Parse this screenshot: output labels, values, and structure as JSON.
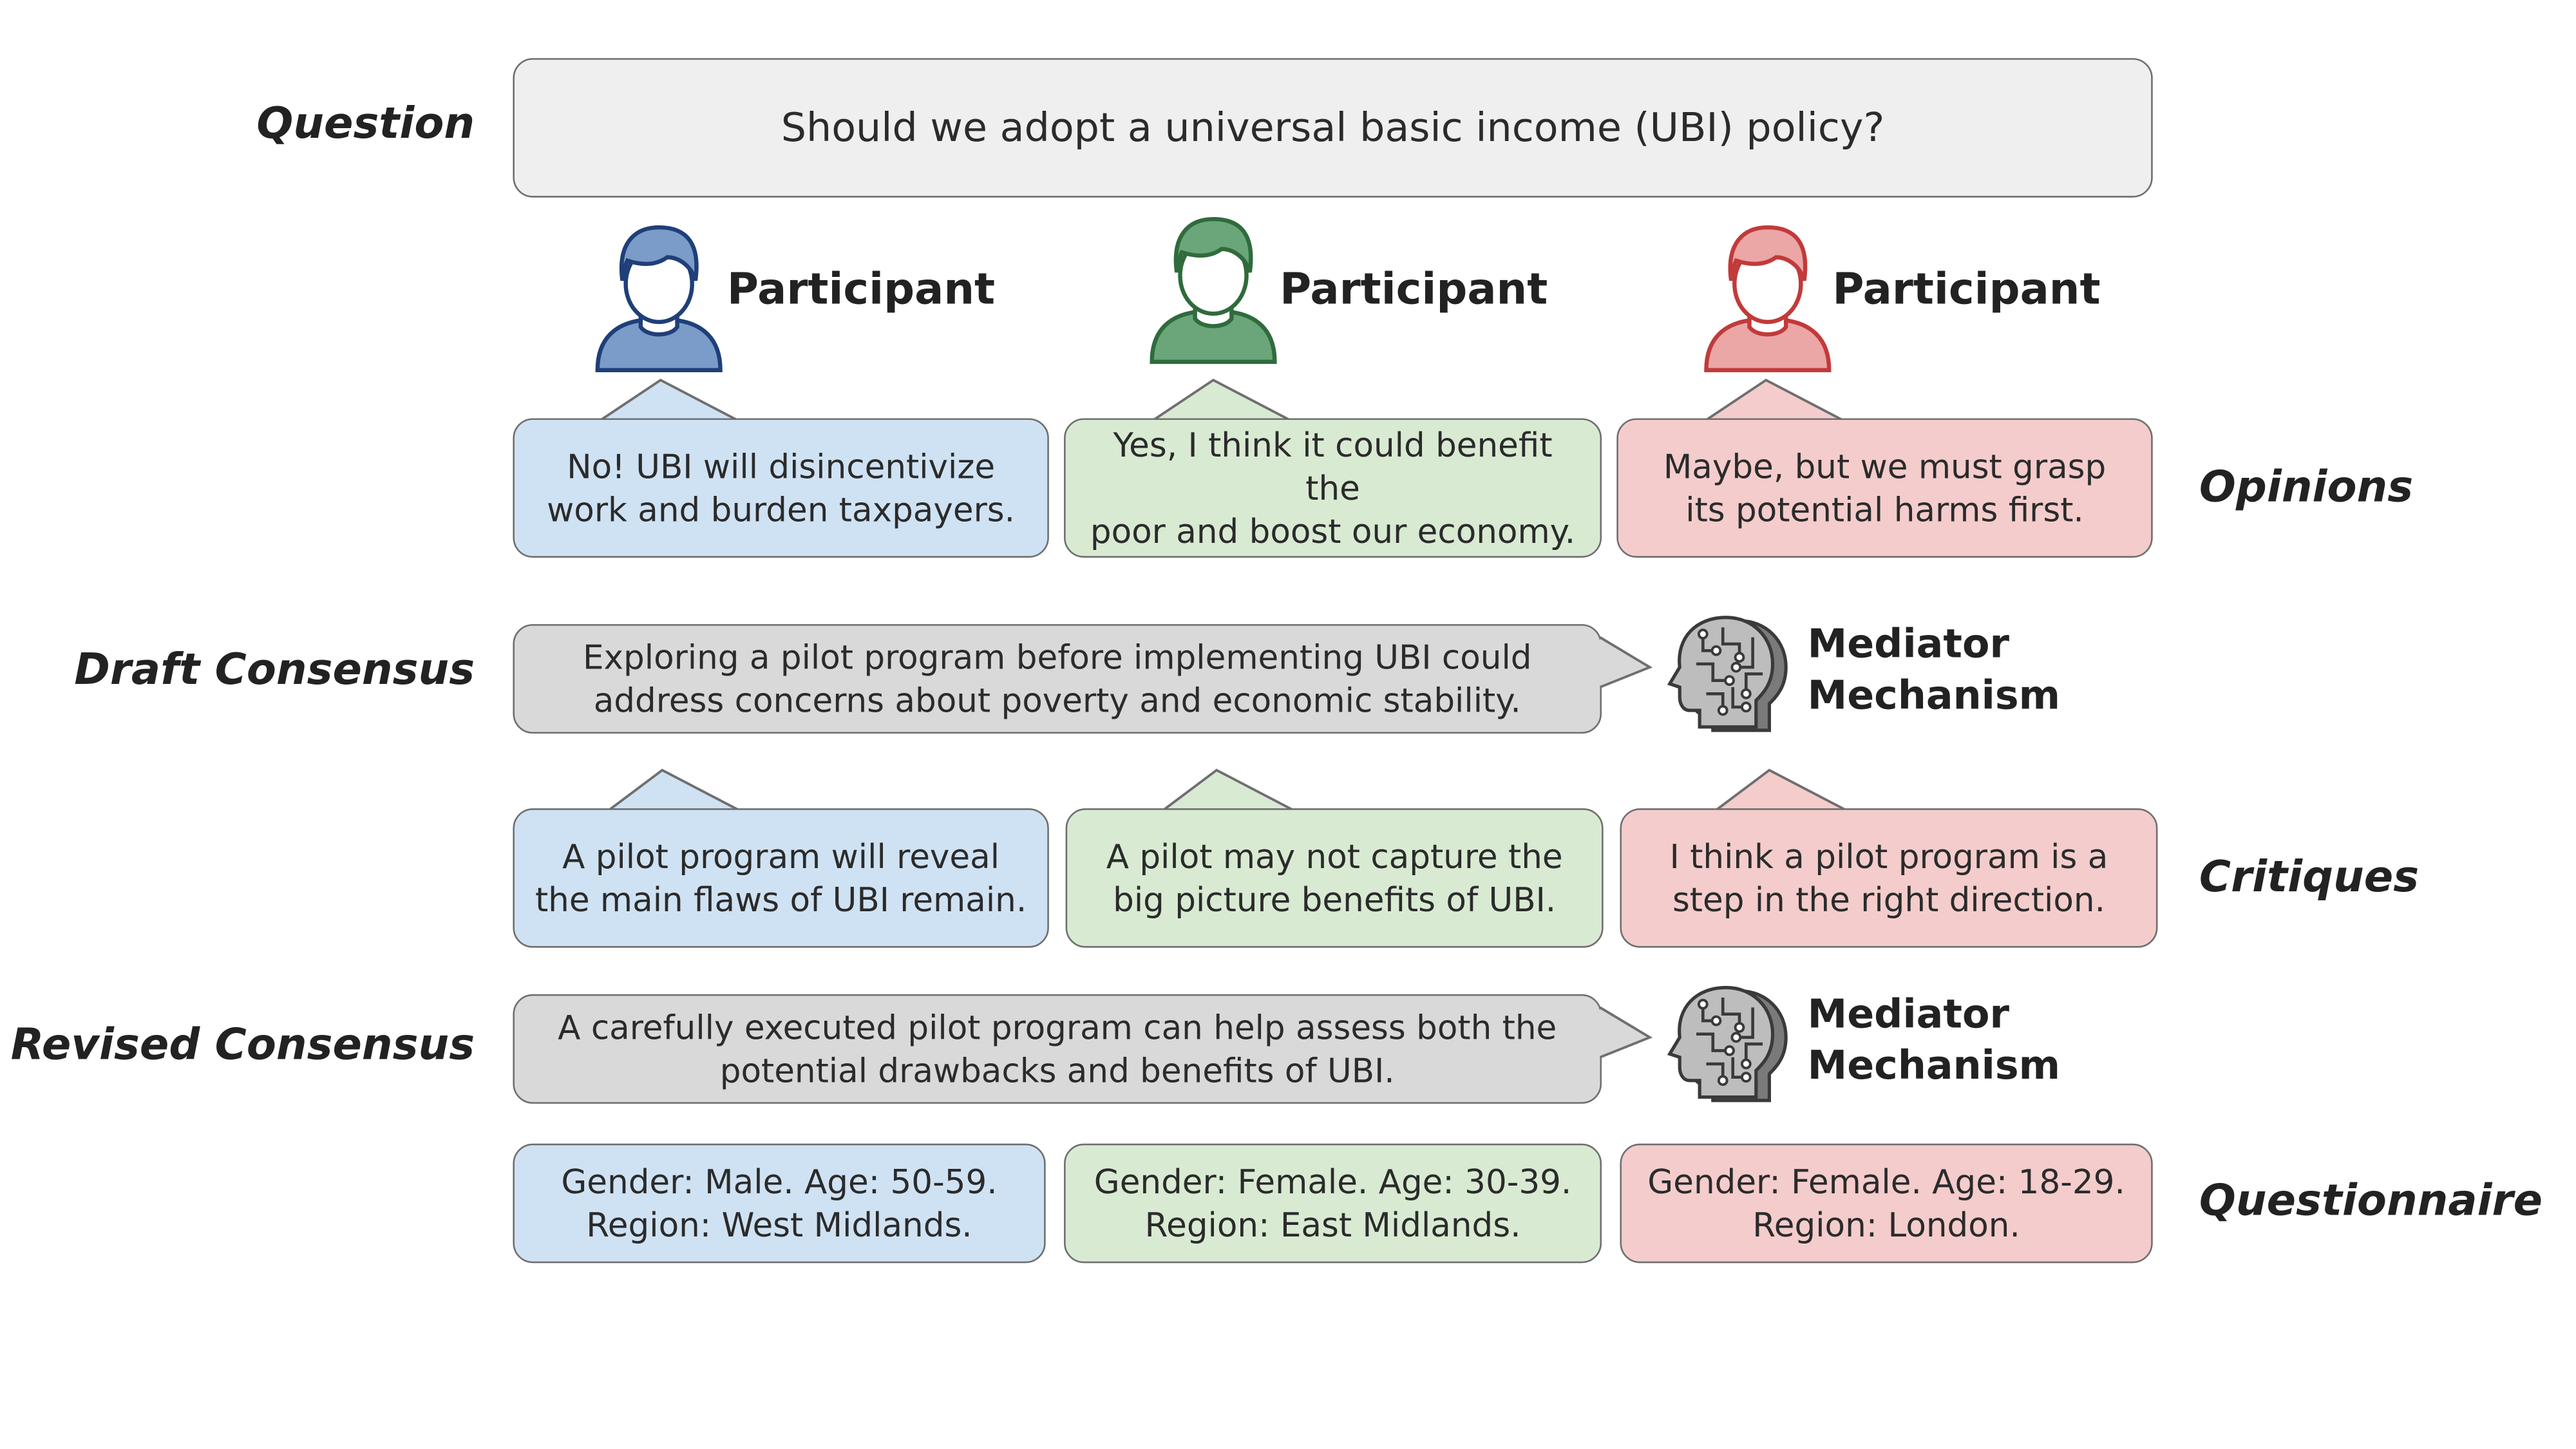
{
  "labels": {
    "question": "Question",
    "opinions": "Opinions",
    "draft_consensus": "Draft Consensus",
    "critiques": "Critiques",
    "revised_consensus": "Revised Consensus",
    "questionnaire": "Questionnaire"
  },
  "question_text": "Should we adopt a universal basic income (UBI) policy?",
  "participants": [
    {
      "label": "Participant",
      "color": "#7b9cc8",
      "stroke": "#1f3f78"
    },
    {
      "label": "Participant",
      "color": "#6aa67a",
      "stroke": "#2f6b3c"
    },
    {
      "label": "Participant",
      "color": "#eba6a6",
      "stroke": "#c23a3a"
    }
  ],
  "opinions": [
    {
      "line1": "No! UBI will disincentivize",
      "line2": "work and burden taxpayers."
    },
    {
      "line1": "Yes, I think it could benefit the",
      "line2": "poor and boost our economy."
    },
    {
      "line1": "Maybe, but we must grasp",
      "line2": "its potential harms first."
    }
  ],
  "draft": {
    "line1": "Exploring a pilot program before implementing UBI could",
    "line2": "address concerns about poverty and economic stability."
  },
  "mediator": {
    "line1": "Mediator",
    "line2": "Mechanism",
    "icon": "ai-head-circuit-icon"
  },
  "critiques": [
    {
      "line1": "A pilot program will reveal",
      "line2": "the main flaws of UBI remain."
    },
    {
      "line1": "A pilot may not capture the",
      "line2": "big picture benefits of UBI."
    },
    {
      "line1": "I think a pilot program is a",
      "line2": "step in the right direction."
    }
  ],
  "revised": {
    "line1": "A carefully executed pilot program can help assess both the",
    "line2": "potential drawbacks and benefits of UBI."
  },
  "questionnaire": [
    {
      "line1": "Gender: Male. Age: 50-59.",
      "line2": "Region: West Midlands."
    },
    {
      "line1": "Gender: Female. Age: 30-39.",
      "line2": "Region: East Midlands."
    },
    {
      "line1": "Gender: Female. Age: 18-29.",
      "line2": "Region: London."
    }
  ]
}
